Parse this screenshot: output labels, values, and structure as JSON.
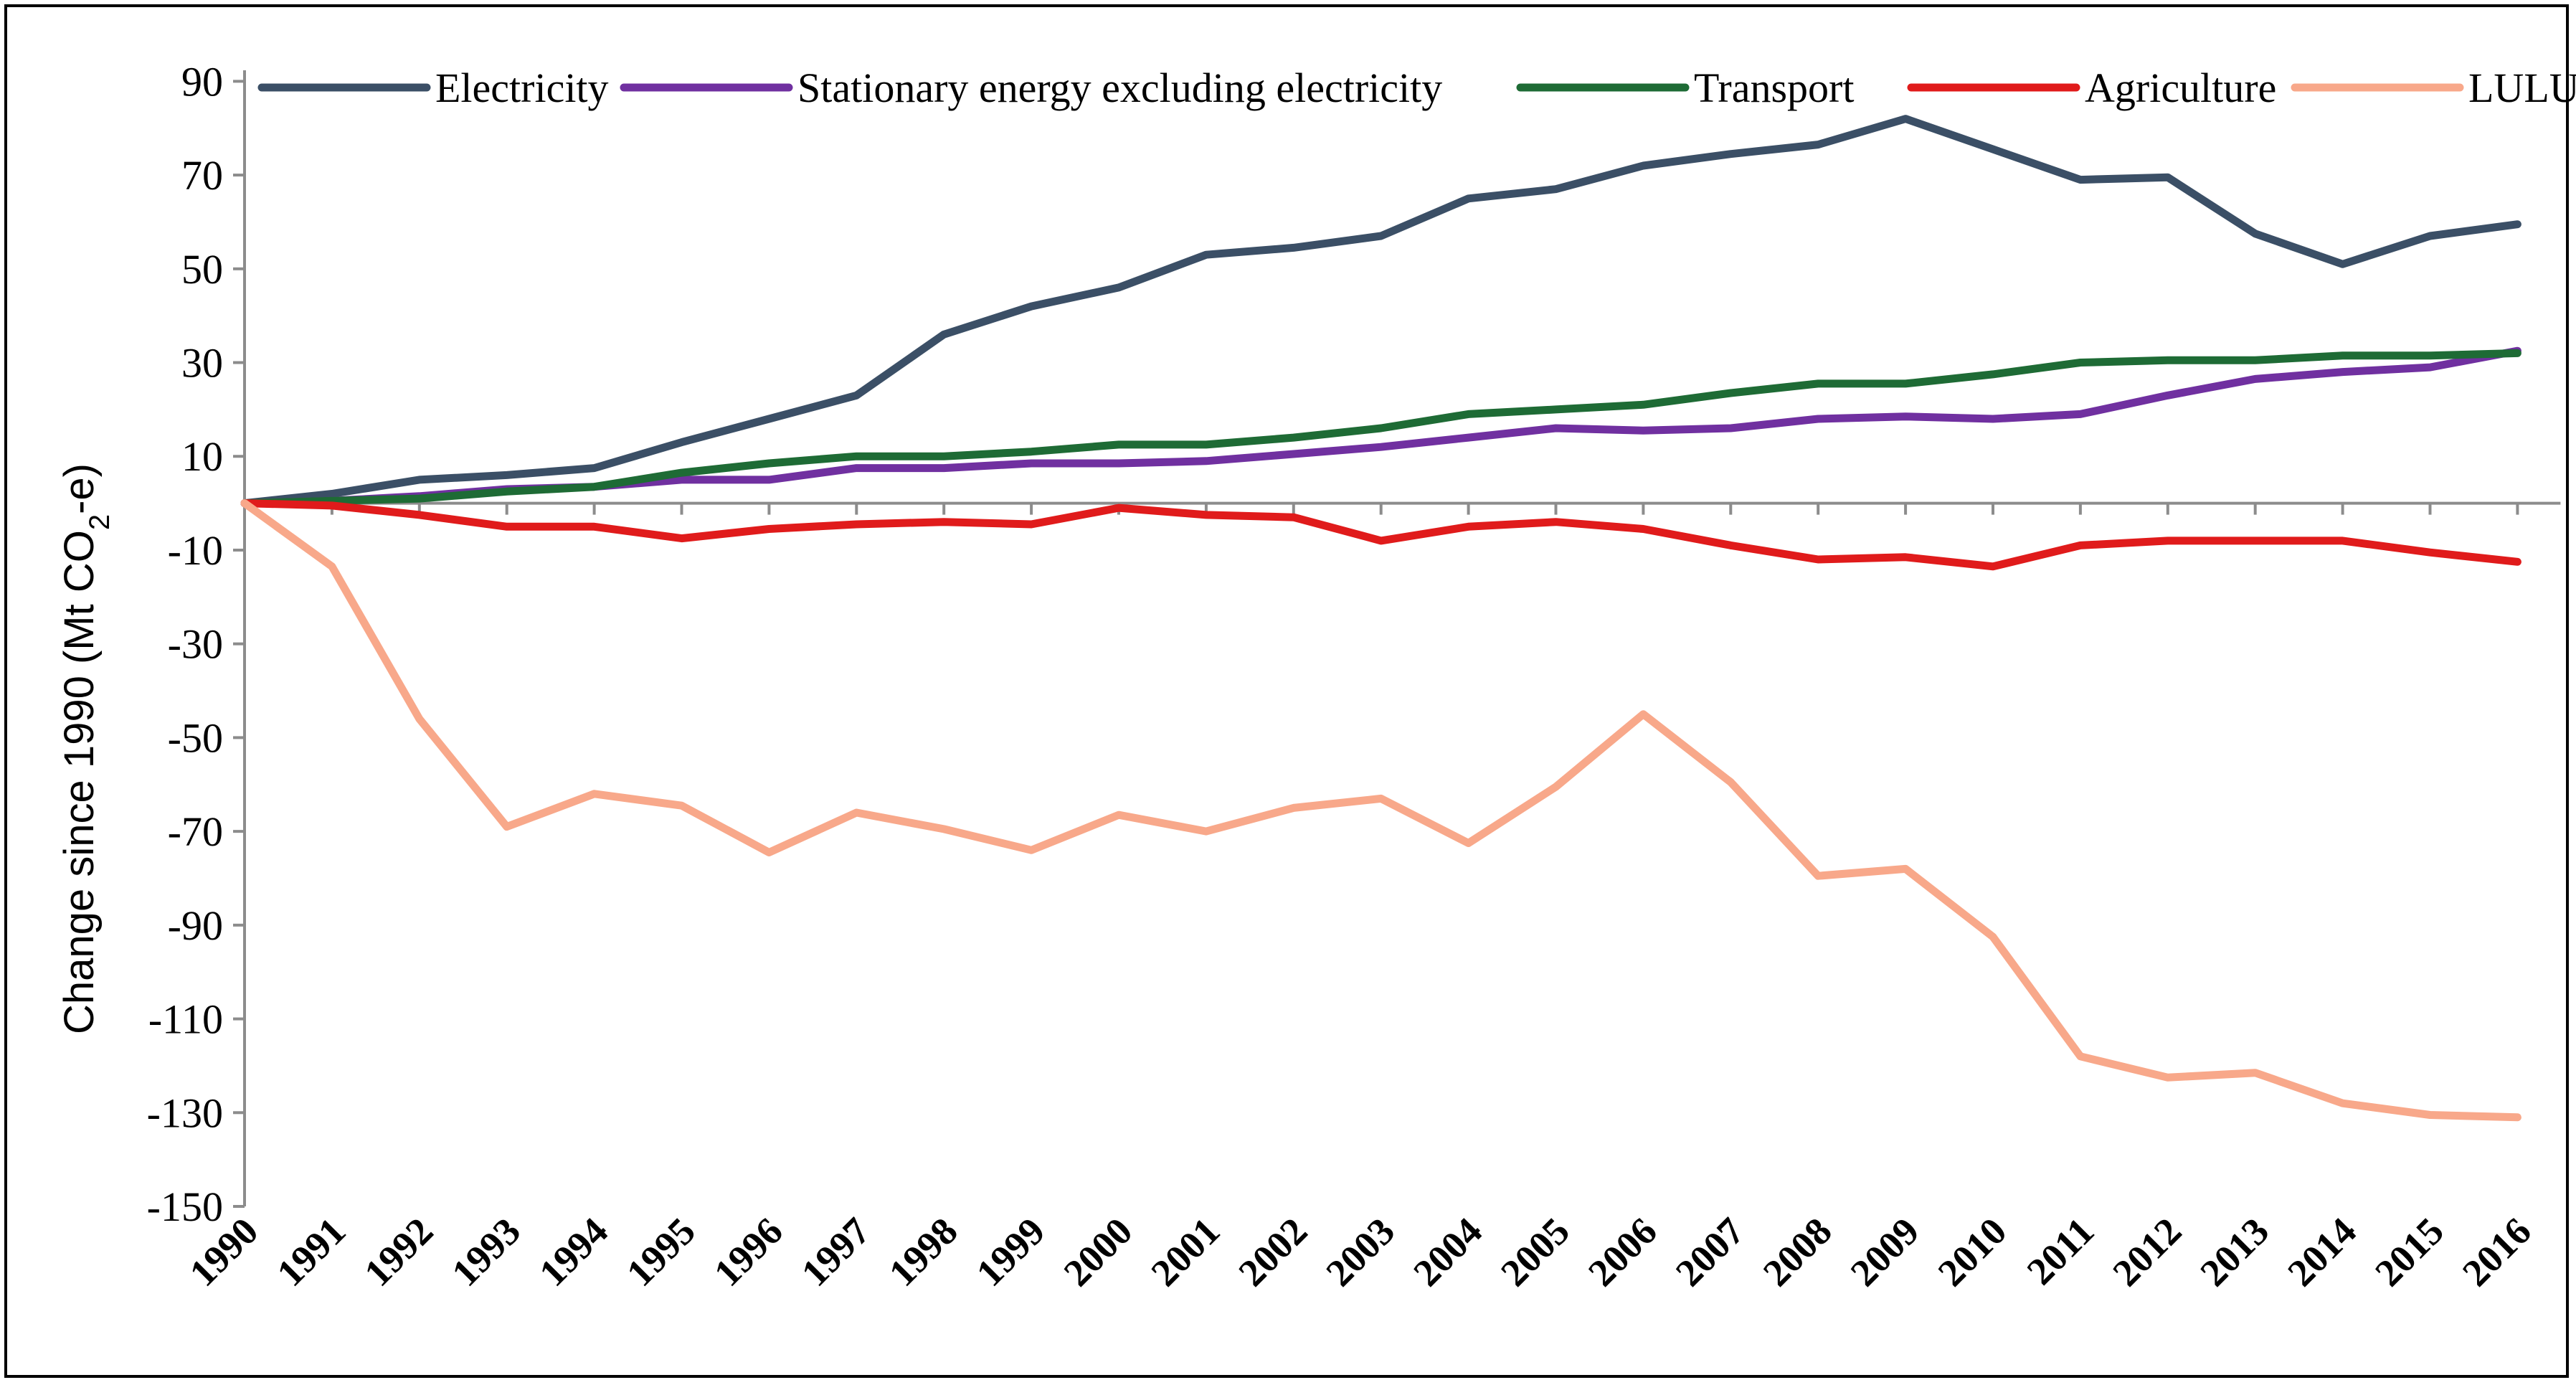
{
  "chart_data": {
    "type": "line",
    "title": "",
    "xlabel": "",
    "ylabel": "Change since 1990 (Mt CO",
    "ylabel_subscript": "2",
    "ylabel_suffix": "-e)",
    "ylim": [
      -150,
      100
    ],
    "yticks": [
      90,
      70,
      50,
      30,
      10,
      -10,
      -30,
      -50,
      -70,
      -90,
      -110,
      -130,
      -150
    ],
    "grid": false,
    "legend_position": "top",
    "categories": [
      "1990",
      "1991",
      "1992",
      "1993",
      "1994",
      "1995",
      "1996",
      "1997",
      "1998",
      "1999",
      "2000",
      "2001",
      "2002",
      "2003",
      "2004",
      "2005",
      "2006",
      "2007",
      "2008",
      "2009",
      "2010",
      "2011",
      "2012",
      "2013",
      "2014",
      "2015",
      "2016"
    ],
    "series": [
      {
        "name": "Electricity",
        "color": "#3b4f66",
        "values": [
          0,
          2,
          5,
          6,
          7.5,
          13,
          18,
          23,
          36,
          42,
          46,
          53,
          54.5,
          57,
          65,
          67,
          72,
          74.5,
          76.5,
          82,
          75.5,
          69,
          69.5,
          57.5,
          51,
          57,
          59.5
        ]
      },
      {
        "name": "Stationary energy excluding electricity",
        "color": "#7030a0",
        "values": [
          0,
          0.5,
          1.5,
          3,
          3.5,
          5,
          5,
          7.5,
          7.5,
          8.5,
          8.5,
          9,
          10.5,
          12,
          14,
          16,
          15.5,
          16,
          18,
          18.5,
          18,
          19,
          23,
          26.5,
          28,
          29,
          32.5
        ]
      },
      {
        "name": "Transport",
        "color": "#1e6b35",
        "values": [
          0,
          0.5,
          1,
          2.5,
          3.5,
          6.5,
          8.5,
          10,
          10,
          11,
          12.5,
          12.5,
          14,
          16,
          19,
          20,
          21,
          23.5,
          25.5,
          25.5,
          27.5,
          30,
          30.5,
          30.5,
          31.5,
          31.5,
          32
        ]
      },
      {
        "name": "Agriculture",
        "color": "#e01b1b",
        "values": [
          0,
          -0.5,
          -2.5,
          -5,
          -5,
          -7.5,
          -5.5,
          -4.5,
          -4,
          -4.5,
          -1,
          -2.5,
          -3,
          -8,
          -5,
          -4,
          -5.5,
          -9,
          -12,
          -11.5,
          -13.5,
          -9,
          -8,
          -8,
          -8,
          -10.5,
          -12.5
        ]
      },
      {
        "name": "LULUCF",
        "color": "#f8a88a",
        "values": [
          0,
          -13.5,
          -46,
          -69,
          -62,
          -64.5,
          -74.5,
          -66,
          -69.5,
          -74,
          -66.5,
          -70,
          -65,
          -63,
          -72.5,
          -60.5,
          -45,
          -59.5,
          -79.5,
          -78,
          -92.5,
          -118,
          -122.5,
          -121.5,
          -128,
          -130.5,
          -131
        ]
      }
    ]
  }
}
